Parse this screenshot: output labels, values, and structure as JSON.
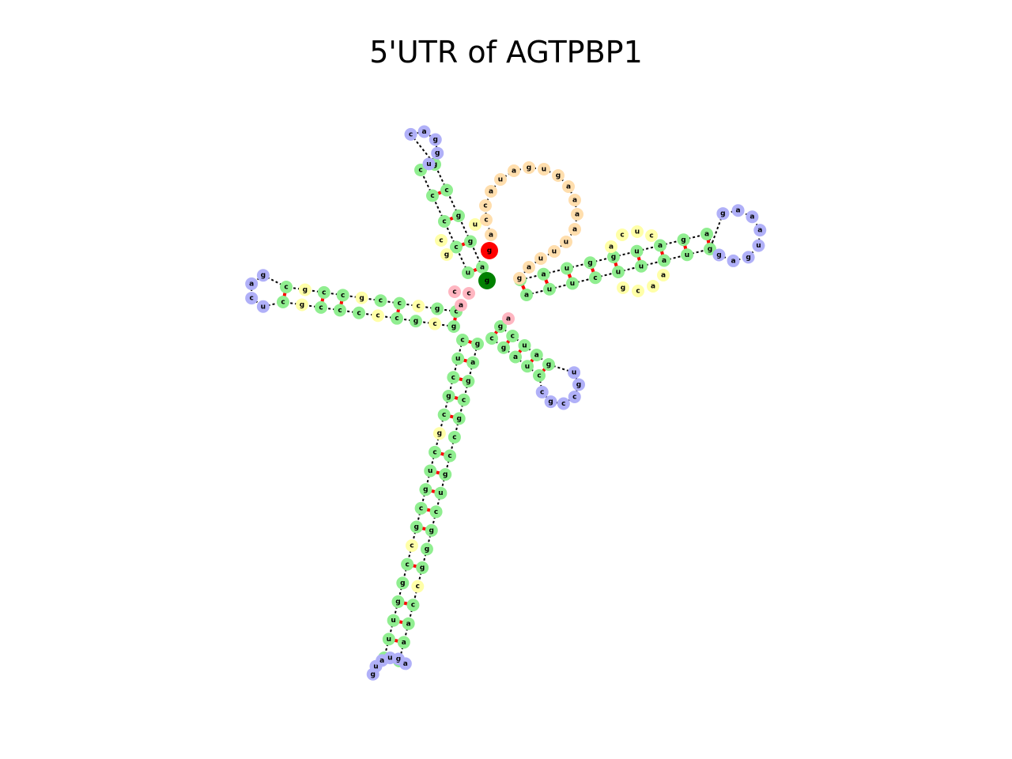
{
  "title": "5'UTR of AGTPBP1",
  "colors": {
    "stem": "#90ee90",
    "interior": "#ffffa8",
    "hairpin": "#b0b0f8",
    "exterior": "#ffdead",
    "multiloop": "#ffb6c1",
    "start": "#ff0000",
    "end": "#008000",
    "pair": "#ff0000",
    "backbone": "#000000"
  },
  "labels": {
    "start_nt": "g",
    "end_nt": "g"
  },
  "arms": {
    "top": {
      "hairpin": [
        "u",
        "g",
        "g",
        "a",
        "c"
      ],
      "left": [
        "u",
        "c",
        "c",
        "c",
        "c"
      ],
      "right": [
        "a",
        "g",
        "g",
        "c",
        "g"
      ],
      "interior_left": [
        "c",
        "g"
      ],
      "interior_right": [
        "u"
      ]
    },
    "left": {
      "hairpin": [
        "g",
        "a",
        "c",
        "u"
      ],
      "top": [
        "c",
        "g",
        "c",
        "c",
        "c",
        "g",
        "c",
        "c",
        "g",
        "c"
      ],
      "bottom": [
        "g",
        "c",
        "g",
        "c",
        "c",
        "c",
        "c",
        "c",
        "g",
        "c"
      ],
      "interior_top": [
        "c",
        "c",
        "c"
      ],
      "interior_bottom": [
        "c",
        "c",
        "c"
      ]
    },
    "right": {
      "hairpin": [
        "g",
        "a",
        "g",
        "u",
        "a",
        "a",
        "a",
        "g"
      ],
      "top": [
        "a",
        "a",
        "u",
        "g",
        "g",
        "u",
        "a",
        "g",
        "a"
      ],
      "bottom": [
        "a",
        "u",
        "u",
        "c",
        "u",
        "u",
        "a",
        "u",
        "g"
      ],
      "interior_top": [
        "a",
        "c",
        "u",
        "c"
      ],
      "interior_bottom": [
        "g",
        "c",
        "a",
        "a"
      ]
    },
    "small": {
      "hairpin": [
        "u",
        "g",
        "c",
        "c",
        "g",
        "c"
      ],
      "left": [
        "c",
        "g",
        "a",
        "u",
        "c"
      ],
      "right": [
        "g",
        "c",
        "u",
        "a",
        "g"
      ]
    },
    "bottom": {
      "hairpin": [
        "g",
        "u",
        "a",
        "u",
        "g",
        "a"
      ],
      "left": [
        "c",
        "u",
        "c",
        "g",
        "c",
        "g",
        "c",
        "u",
        "g",
        "c",
        "g",
        "c",
        "c",
        "g",
        "g",
        "u",
        "u",
        "u"
      ],
      "right": [
        "g",
        "a",
        "g",
        "c",
        "g",
        "c",
        "c",
        "g",
        "u",
        "c",
        "g",
        "g",
        "g",
        "c",
        "c",
        "a",
        "a",
        "a"
      ],
      "interior_left": [
        "c",
        "u",
        "a",
        "g"
      ],
      "interior_right": [
        "c",
        "g",
        "a"
      ]
    },
    "exterior_loop": [
      "a",
      "c",
      "c",
      "a",
      "u",
      "a",
      "g",
      "u",
      "g",
      "a",
      "a",
      "a",
      "a",
      "u",
      "u",
      "u",
      "a",
      "g"
    ],
    "multiloop": [
      "c",
      "c",
      "a",
      "a"
    ]
  }
}
